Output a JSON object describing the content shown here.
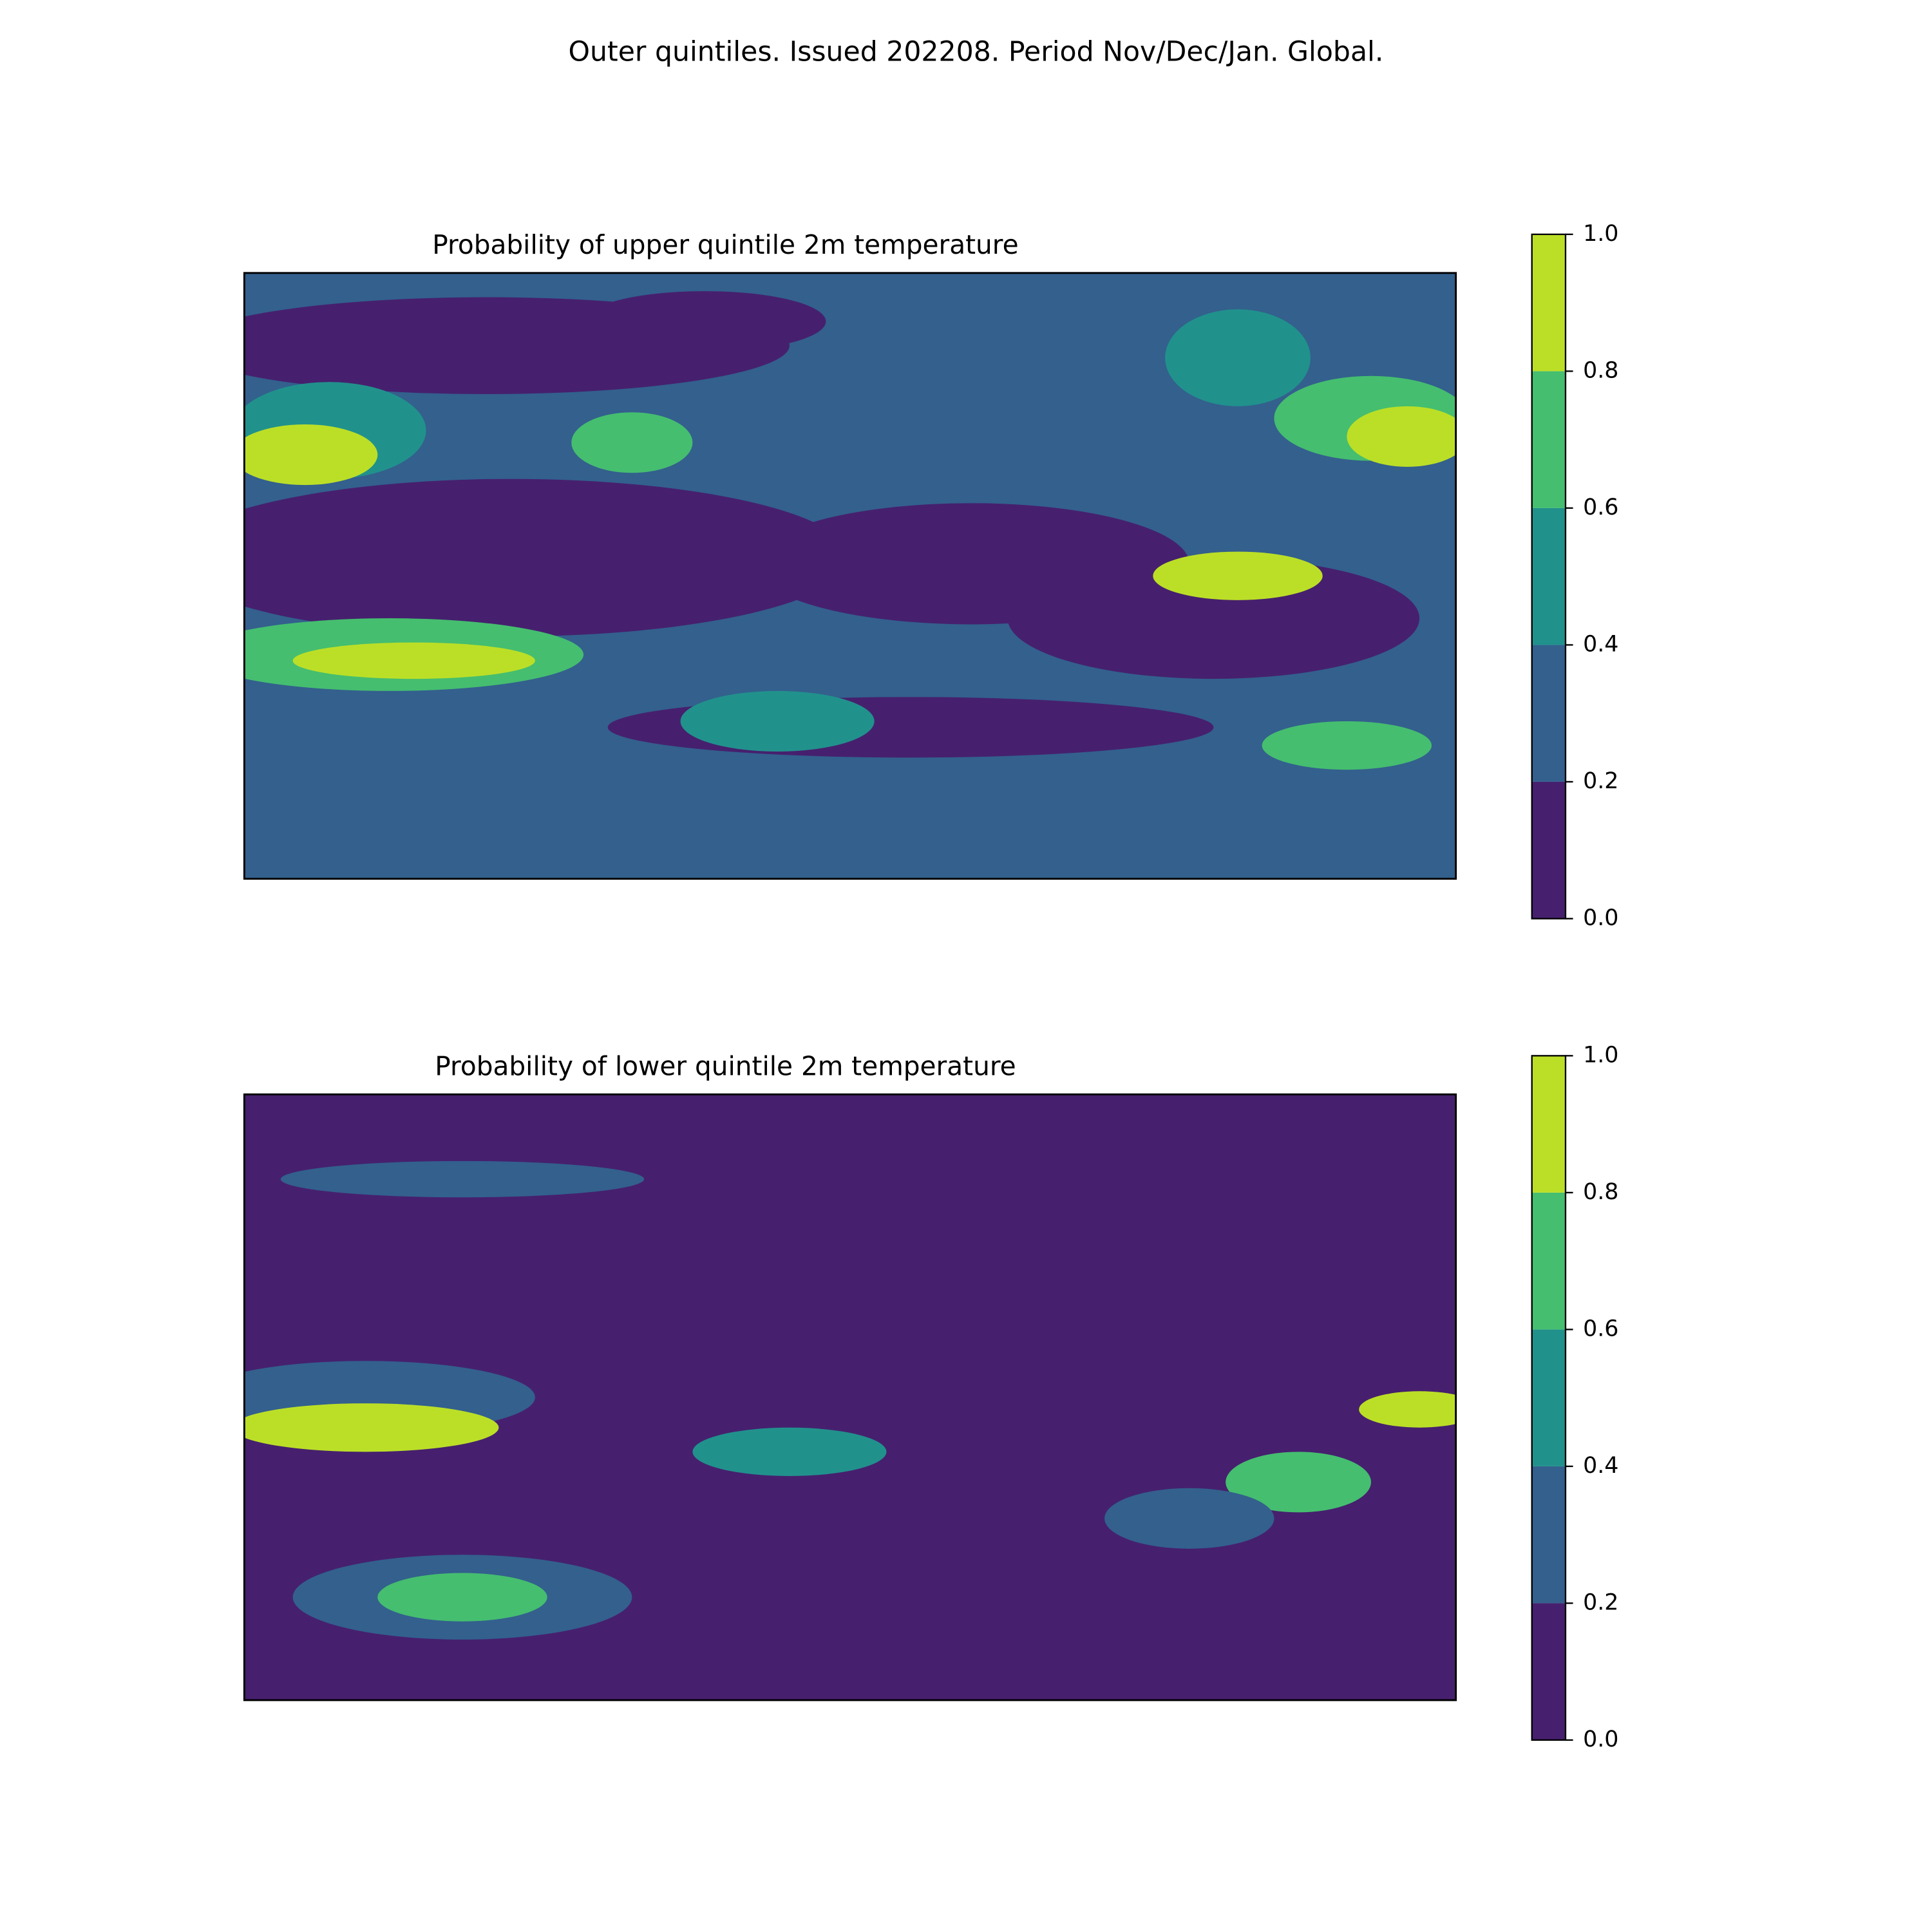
{
  "title": "Outer quintiles. Issued 202208. Period Nov/Dec/Jan. Global.",
  "chart_data": [
    {
      "type": "contour",
      "title": "Probability of upper quintile 2m temperature",
      "colors": [
        "#46206e",
        "#33608d",
        "#21918c",
        "#45be6f",
        "#bbdf27"
      ],
      "clim": [
        0,
        1
      ],
      "cticks": [
        {
          "value": 0,
          "label": "0.0"
        },
        {
          "value": 0.2,
          "label": "0.2"
        },
        {
          "value": 0.4,
          "label": "0.4"
        },
        {
          "value": 0.6,
          "label": "0.6"
        },
        {
          "value": 0.8,
          "label": "0.8"
        },
        {
          "value": 1,
          "label": "1.0"
        }
      ]
    },
    {
      "type": "contour",
      "title": "Probability of lower quintile 2m temperature",
      "colors": [
        "#46206e",
        "#33608d",
        "#21918c",
        "#45be6f",
        "#bbdf27"
      ],
      "clim": [
        0,
        1
      ],
      "cticks": [
        {
          "value": 0,
          "label": "0.0"
        },
        {
          "value": 0.2,
          "label": "0.2"
        },
        {
          "value": 0.4,
          "label": "0.4"
        },
        {
          "value": 0.6,
          "label": "0.6"
        },
        {
          "value": 0.8,
          "label": "0.8"
        },
        {
          "value": 1,
          "label": "1.0"
        }
      ]
    }
  ]
}
